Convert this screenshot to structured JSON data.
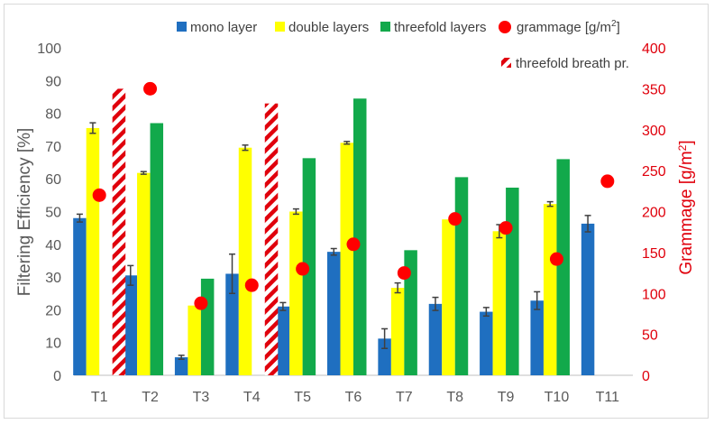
{
  "chart_data": {
    "type": "bar",
    "categories": [
      "T1",
      "T2",
      "T3",
      "T4",
      "T5",
      "T6",
      "T7",
      "T8",
      "T9",
      "T10",
      "T11"
    ],
    "series": [
      {
        "name": "mono layer",
        "color": "#1f6fc0",
        "values": [
          48,
          30.5,
          5.5,
          31,
          21,
          37.7,
          11.2,
          21.8,
          19.4,
          22.8,
          46.3
        ],
        "errors": [
          1.2,
          3,
          0.6,
          6,
          1.2,
          1,
          3,
          2,
          1.3,
          2.7,
          2.5
        ]
      },
      {
        "name": "double layers",
        "color": "#ffff00",
        "values": [
          75.5,
          61.8,
          21.3,
          69.5,
          50,
          71,
          26.7,
          47.6,
          44,
          52.3,
          null
        ],
        "errors": [
          1.6,
          0.4,
          0,
          0.8,
          0.8,
          0.4,
          1.5,
          0,
          2,
          0.7,
          null
        ]
      },
      {
        "name": "threefold layers",
        "color": "#12a94b",
        "values": [
          null,
          77,
          29.5,
          null,
          66.3,
          84.5,
          38.2,
          60.5,
          57.3,
          66,
          null
        ]
      },
      {
        "name": "threefold breath pr.",
        "color": "#e0000c",
        "pattern": "diagonal-stripes",
        "values": [
          87.5,
          null,
          null,
          83,
          null,
          null,
          null,
          null,
          null,
          null,
          null
        ]
      }
    ],
    "secondary_series": {
      "name": "grammage [g/m²]",
      "color": "#ff0000",
      "marker": "circle",
      "values": [
        220,
        350,
        88,
        110,
        130,
        160,
        125,
        191,
        180,
        142,
        237
      ]
    },
    "ylabel": "Filtering Efficiency [%]",
    "ylim": [
      0,
      100
    ],
    "y_ticks": [
      "0",
      "10",
      "20",
      "30",
      "40",
      "50",
      "60",
      "70",
      "80",
      "90",
      "100"
    ],
    "y2label": "Grammage [g/m²]",
    "y2lim": [
      0,
      400
    ],
    "y2_ticks": [
      "0",
      "50",
      "100",
      "150",
      "200",
      "250",
      "300",
      "350",
      "400"
    ],
    "grid": false,
    "legend_placement": "top"
  },
  "legend": {
    "mono": "mono layer",
    "double": "double layers",
    "threefold": "threefold layers",
    "grammage_prefix": "grammage [g/m",
    "grammage_sup": "2",
    "grammage_suffix": "]",
    "breath": "threefold breath pr."
  },
  "axis": {
    "left_title": "Filtering Efficiency [%]",
    "right_prefix": "Grammage [g/m",
    "right_sup": "2",
    "right_suffix": "]"
  }
}
